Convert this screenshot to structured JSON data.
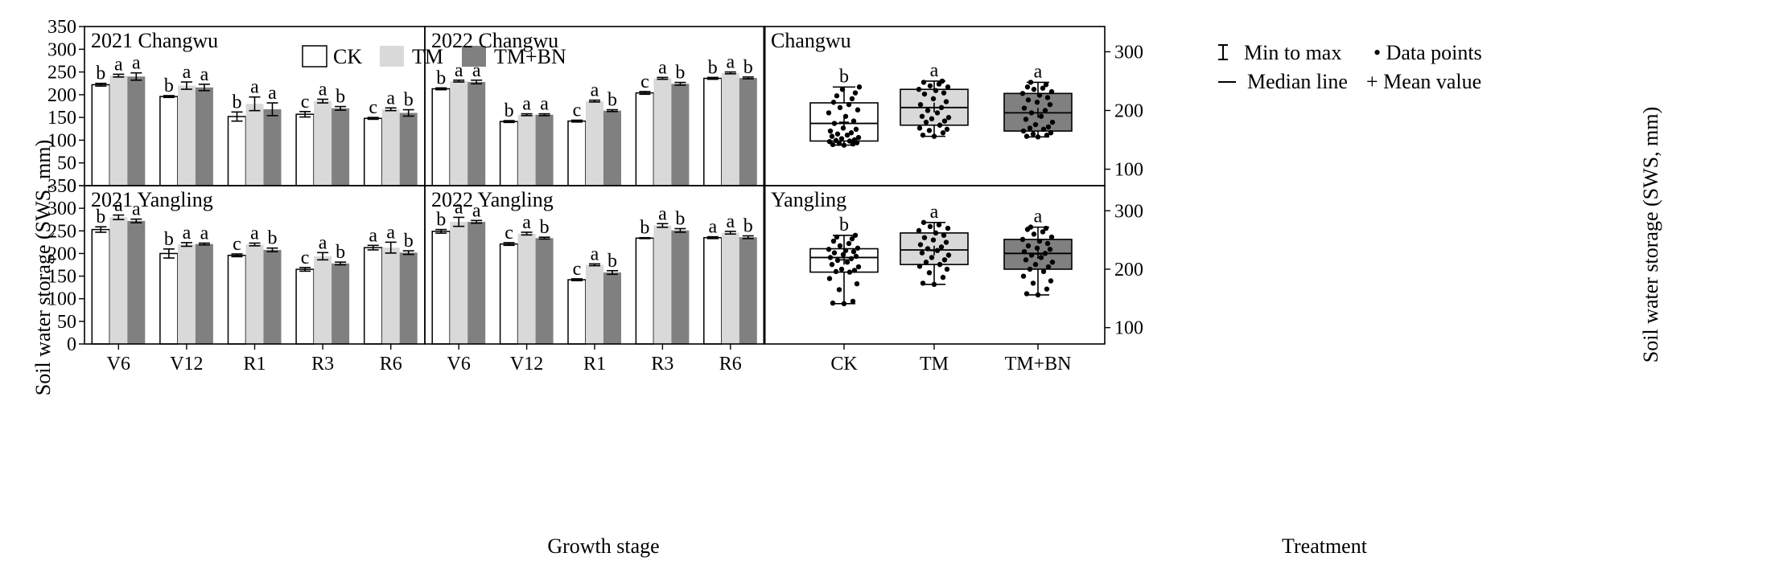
{
  "colors": {
    "CK": "#ffffff",
    "TM": "#d9d9d9",
    "TM+BN": "#808080",
    "stroke": "#000000"
  },
  "chart_data": {
    "type": "bar",
    "figure": {
      "left_ylabel": "Soil water storage (SWS, mm)",
      "right_ylabel": "Soil water storage (SWS, mm)",
      "bar_xlabel": "Growth stage",
      "box_xlabel": "Treatment"
    },
    "legend": {
      "CK": "CK",
      "TM": "TM",
      "TM+BN": "TM+BN",
      "placement": "top"
    },
    "box_legend": {
      "minmax": "Min to max",
      "points": "• Data points",
      "median": "Median line",
      "mean": "+ Mean value",
      "placement": "top-right"
    },
    "bar_charts": [
      {
        "title": "2021 Changwu",
        "categories": [
          "V6",
          "V12",
          "R1",
          "R3",
          "R6"
        ],
        "ylim": [
          0,
          350
        ],
        "yticks": [
          0,
          50,
          100,
          150,
          200,
          250,
          300,
          350
        ],
        "show_yticks": true,
        "series": [
          {
            "name": "CK",
            "values": [
              222,
              196,
              152,
              157,
              148
            ],
            "err": [
              3,
              2,
              10,
              6,
              2
            ],
            "labels": [
              "b",
              "b",
              "b",
              "c",
              "c"
            ]
          },
          {
            "name": "TM",
            "values": [
              242,
              220,
              180,
              186,
              168
            ],
            "err": [
              3,
              8,
              15,
              4,
              3
            ],
            "labels": [
              "a",
              "a",
              "a",
              "a",
              "a"
            ]
          },
          {
            "name": "TM+BN",
            "values": [
              240,
              216,
              168,
              170,
              160
            ],
            "err": [
              8,
              7,
              14,
              4,
              7
            ],
            "labels": [
              "a",
              "a",
              "a",
              "b",
              "b"
            ]
          }
        ]
      },
      {
        "title": "2022 Changwu",
        "categories": [
          "V6",
          "V12",
          "R1",
          "R3",
          "R6"
        ],
        "ylim": [
          0,
          350
        ],
        "yticks": [
          0,
          50,
          100,
          150,
          200,
          250,
          300,
          350
        ],
        "show_yticks": false,
        "series": [
          {
            "name": "CK",
            "values": [
              213,
              141,
              142,
              204,
              236
            ],
            "err": [
              2,
              2,
              2,
              3,
              2
            ],
            "labels": [
              "b",
              "b",
              "c",
              "c",
              "b"
            ]
          },
          {
            "name": "TM",
            "values": [
              230,
              156,
              186,
              236,
              248
            ],
            "err": [
              2,
              2,
              2,
              2,
              2
            ],
            "labels": [
              "a",
              "a",
              "a",
              "a",
              "a"
            ]
          },
          {
            "name": "TM+BN",
            "values": [
              228,
              156,
              165,
              224,
              237
            ],
            "err": [
              4,
              2,
              2,
              3,
              2
            ],
            "labels": [
              "a",
              "a",
              "b",
              "b",
              "b"
            ]
          }
        ]
      },
      {
        "title": "2021 Yangling",
        "categories": [
          "V6",
          "V12",
          "R1",
          "R3",
          "R6"
        ],
        "ylim": [
          0,
          350
        ],
        "yticks": [
          0,
          50,
          100,
          150,
          200,
          250,
          300,
          350
        ],
        "show_yticks": true,
        "series": [
          {
            "name": "CK",
            "values": [
              253,
              200,
              196,
              165,
              213
            ],
            "err": [
              6,
              10,
              3,
              4,
              5
            ],
            "labels": [
              "b",
              "b",
              "c",
              "c",
              "a"
            ]
          },
          {
            "name": "TM",
            "values": [
              280,
              220,
              220,
              194,
              213
            ],
            "err": [
              5,
              4,
              3,
              8,
              12
            ],
            "labels": [
              "a",
              "a",
              "a",
              "a",
              "a"
            ]
          },
          {
            "name": "TM+BN",
            "values": [
              272,
              221,
              208,
              178,
              202
            ],
            "err": [
              4,
              2,
              4,
              3,
              4
            ],
            "labels": [
              "a",
              "a",
              "b",
              "b",
              "b"
            ]
          }
        ]
      },
      {
        "title": "2022 Yangling",
        "categories": [
          "V6",
          "V12",
          "R1",
          "R3",
          "R6"
        ],
        "ylim": [
          0,
          350
        ],
        "yticks": [
          0,
          50,
          100,
          150,
          200,
          250,
          300,
          350
        ],
        "show_yticks": false,
        "series": [
          {
            "name": "CK",
            "values": [
              249,
              221,
              142,
              234,
              235
            ],
            "err": [
              4,
              3,
              2,
              1,
              2
            ],
            "labels": [
              "b",
              "c",
              "c",
              "b",
              "a"
            ]
          },
          {
            "name": "TM",
            "values": [
              270,
              244,
              175,
              262,
              246
            ],
            "err": [
              10,
              3,
              2,
              4,
              3
            ],
            "labels": [
              "a",
              "a",
              "a",
              "a",
              "a"
            ]
          },
          {
            "name": "TM+BN",
            "values": [
              270,
              234,
              158,
              251,
              236
            ],
            "err": [
              3,
              2,
              4,
              4,
              3
            ],
            "labels": [
              "a",
              "b",
              "b",
              "b",
              "b"
            ]
          }
        ]
      }
    ],
    "box_charts": [
      {
        "title": "Changwu",
        "type": "box",
        "categories": [
          "CK",
          "TM",
          "TM+BN"
        ],
        "ylim": [
          72,
          343
        ],
        "yticks": [
          100,
          200,
          300
        ],
        "show_xticks": false,
        "boxes": [
          {
            "name": "CK",
            "min": 141,
            "q1": 148,
            "median": 178,
            "q3": 213,
            "max": 240,
            "mean": 180,
            "label": "b",
            "points": [
              141,
              142,
              143,
              144,
              145,
              147,
              148,
              149,
              150,
              152,
              154,
              156,
              158,
              160,
              162,
              165,
              168,
              170,
              178,
              182,
              190,
              196,
              201,
              205,
              210,
              214,
              220,
              225,
              230,
              236,
              240
            ]
          },
          {
            "name": "TM",
            "min": 156,
            "q1": 175,
            "median": 205,
            "q3": 236,
            "max": 250,
            "mean": 205,
            "label": "a",
            "points": [
              156,
              158,
              162,
              166,
              168,
              170,
              175,
              180,
              182,
              186,
              188,
              190,
              196,
              200,
              205,
              210,
              215,
              220,
              228,
              230,
              234,
              236,
              240,
              242,
              245,
              248,
              250
            ]
          },
          {
            "name": "TM+BN",
            "min": 155,
            "q1": 165,
            "median": 196,
            "q3": 229,
            "max": 248,
            "mean": 196,
            "label": "a",
            "points": [
              155,
              156,
              158,
              160,
              162,
              165,
              168,
              170,
              172,
              176,
              180,
              185,
              190,
              196,
              200,
              204,
              210,
              214,
              218,
              222,
              226,
              229,
              232,
              236,
              238,
              240,
              244,
              248
            ]
          }
        ]
      },
      {
        "title": "Yangling",
        "type": "box",
        "categories": [
          "CK",
          "TM",
          "TM+BN"
        ],
        "ylim": [
          72,
          343
        ],
        "yticks": [
          100,
          200,
          300
        ],
        "show_xticks": true,
        "boxes": [
          {
            "name": "CK",
            "min": 141,
            "q1": 195,
            "median": 220,
            "q3": 235,
            "max": 258,
            "mean": 216,
            "label": "b",
            "points": [
              141,
              142,
              145,
              165,
              175,
              184,
              195,
              196,
              198,
              200,
              204,
              208,
              212,
              215,
              218,
              220,
              222,
              225,
              228,
              230,
              232,
              234,
              236,
              240,
              244,
              248,
              252,
              255,
              258
            ]
          },
          {
            "name": "TM",
            "min": 174,
            "q1": 208,
            "median": 233,
            "q3": 262,
            "max": 280,
            "mean": 232,
            "label": "a",
            "points": [
              174,
              176,
              186,
              194,
              200,
              205,
              208,
              212,
              216,
              220,
              224,
              228,
              232,
              235,
              238,
              242,
              246,
              250,
              254,
              258,
              262,
              266,
              270,
              273,
              276,
              280
            ]
          },
          {
            "name": "TM+BN",
            "min": 156,
            "q1": 200,
            "median": 227,
            "q3": 251,
            "max": 272,
            "mean": 226,
            "label": "a",
            "points": [
              156,
              158,
              166,
              176,
              180,
              188,
              196,
              200,
              204,
              208,
              212,
              216,
              220,
              224,
              227,
              230,
              234,
              236,
              240,
              244,
              248,
              251,
              255,
              260,
              264,
              268,
              270,
              272
            ]
          }
        ]
      }
    ]
  }
}
